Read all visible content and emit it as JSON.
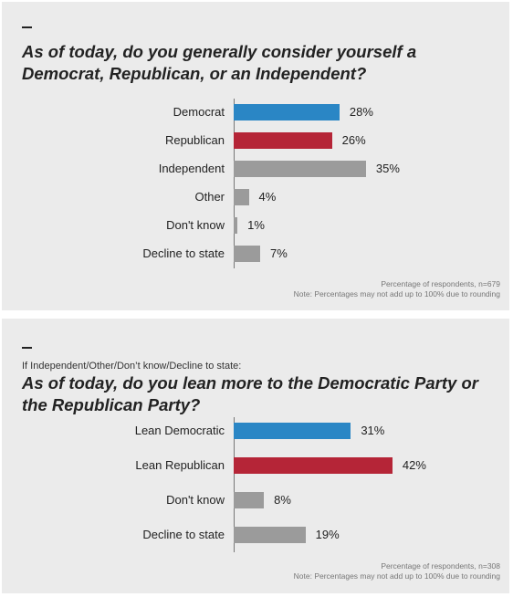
{
  "colors": {
    "democrat": "#2a86c5",
    "republican": "#b52537",
    "other": "#9b9b9b"
  },
  "chart_data": [
    {
      "type": "bar",
      "orientation": "horizontal",
      "title": "As of today, do you generally consider yourself a Democrat, Republican, or an Independent?",
      "categories": [
        "Democrat",
        "Republican",
        "Independent",
        "Other",
        "Don't know",
        "Decline to state"
      ],
      "values": [
        28,
        26,
        35,
        4,
        1,
        7
      ],
      "value_labels": [
        "28%",
        "26%",
        "35%",
        "4%",
        "1%",
        "7%"
      ],
      "bar_colors": [
        "#2a86c5",
        "#b52537",
        "#9b9b9b",
        "#9b9b9b",
        "#9b9b9b",
        "#9b9b9b"
      ],
      "unit": "%",
      "notes": [
        "Percentage of respondents, n=679",
        "Note: Percentages may not add up to 100% due to rounding"
      ]
    },
    {
      "type": "bar",
      "orientation": "horizontal",
      "subtitle": "If Independent/Other/Don’t know/Decline to state:",
      "title": "As of today, do you lean more to the Democratic Party or the Republican Party?",
      "categories": [
        "Lean Democratic",
        "Lean Republican",
        "Don't know",
        "Decline to state"
      ],
      "values": [
        31,
        42,
        8,
        19
      ],
      "value_labels": [
        "31%",
        "42%",
        "8%",
        "19%"
      ],
      "bar_colors": [
        "#2a86c5",
        "#b52537",
        "#9b9b9b",
        "#9b9b9b"
      ],
      "unit": "%",
      "notes": [
        "Percentage of respondents, n=308",
        "Note: Percentages may not add up to 100% due to rounding"
      ]
    }
  ]
}
